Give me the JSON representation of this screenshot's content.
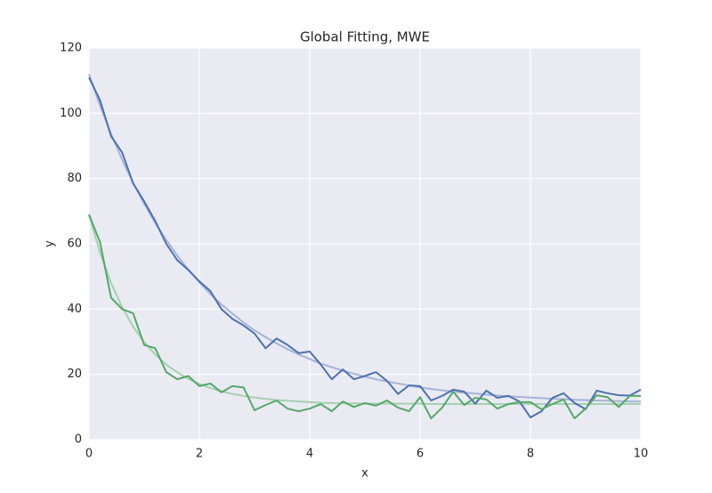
{
  "chart_data": {
    "type": "line",
    "title": "Global Fitting, MWE",
    "x_label": "x",
    "y_label": "y",
    "x": [
      0,
      0.2,
      0.4,
      0.6,
      0.8,
      1.0,
      1.2,
      1.4,
      1.6,
      1.8,
      2.0,
      2.2,
      2.4,
      2.6,
      2.8,
      3.0,
      3.2,
      3.4,
      3.6,
      3.8,
      4.0,
      4.2,
      4.4,
      4.6,
      4.8,
      5.0,
      5.2,
      5.4,
      5.6,
      5.8,
      6.0,
      6.2,
      6.4,
      6.6,
      6.8,
      7.0,
      7.2,
      7.4,
      7.6,
      7.8,
      8.0,
      8.2,
      8.4,
      8.6,
      8.8,
      9.0,
      9.2,
      9.4,
      9.6,
      9.8,
      10.0
    ],
    "series": [
      {
        "color": "#a4b4d6",
        "values": [
          112,
          102.4,
          93.7,
          85.8,
          78.7,
          72.3,
          66.4,
          61.2,
          56.4,
          52.1,
          48.2,
          44.6,
          41.4,
          38.6,
          35.9,
          33.5,
          31.4,
          29.5,
          27.7,
          26.1,
          24.7,
          23.3,
          22.2,
          21.1,
          20.2,
          19.3,
          18.5,
          17.8,
          17.2,
          16.6,
          16.0,
          15.5,
          15.1,
          14.7,
          14.4,
          14.1,
          13.8,
          13.5,
          13.3,
          13.1,
          12.9,
          12.7,
          12.5,
          12.4,
          12.2,
          12.1,
          12.0,
          11.9,
          11.8,
          11.7,
          11.7
        ]
      },
      {
        "color": "#a6d0b0",
        "values": [
          68.8,
          57.3,
          48.0,
          40.6,
          34.6,
          29.9,
          26.1,
          23.0,
          20.6,
          18.6,
          17.1,
          15.8,
          14.8,
          14.0,
          13.4,
          12.9,
          12.5,
          12.1,
          11.9,
          11.7,
          11.5,
          11.3,
          11.2,
          11.1,
          11.1,
          11.0,
          11.0,
          11.0,
          11.0,
          11.0,
          11.0,
          10.9,
          10.9,
          10.9,
          10.9,
          10.9,
          10.9,
          10.9,
          10.9,
          10.9,
          10.9,
          10.9,
          10.9,
          10.9,
          10.9,
          10.9,
          10.9,
          10.9,
          10.9,
          10.9,
          10.9
        ]
      },
      {
        "color": "#4c72b0",
        "values": [
          111,
          104,
          93,
          88,
          78.5,
          73,
          67,
          60,
          55,
          52,
          48.5,
          45.5,
          40,
          37,
          35,
          32.5,
          28,
          31,
          29,
          26.5,
          27,
          23,
          18.5,
          21.5,
          18.5,
          19.5,
          20.7,
          18,
          14,
          16.6,
          16.4,
          12,
          13.4,
          15.3,
          14.7,
          11,
          15,
          12.8,
          13.4,
          11.7,
          6.8,
          8.7,
          12.8,
          14.2,
          11.2,
          9.3,
          15,
          14.2,
          13.6,
          13.5,
          15.3
        ]
      },
      {
        "color": "#55a868",
        "values": [
          69,
          60.5,
          43.5,
          40,
          38.7,
          29,
          28,
          20.7,
          18.5,
          19.5,
          16.4,
          17.2,
          14.5,
          16.4,
          16,
          9,
          10.6,
          12,
          9.5,
          8.7,
          9.5,
          10.9,
          8.7,
          11.7,
          10,
          11.2,
          10.4,
          12,
          9.8,
          8.7,
          13,
          6.5,
          9.8,
          14.7,
          10.6,
          12.8,
          12.3,
          9.5,
          10.9,
          11.5,
          11.5,
          9.3,
          10.9,
          12.3,
          6.5,
          9.5,
          13.6,
          13,
          10,
          13.4,
          13.4
        ]
      }
    ],
    "xlim": [
      0,
      10
    ],
    "ylim": [
      0,
      120
    ],
    "xticks": [
      0,
      2,
      4,
      6,
      8,
      10
    ],
    "yticks": [
      0,
      20,
      40,
      60,
      80,
      100,
      120
    ],
    "grid": true,
    "background": "#eaeaf2"
  }
}
